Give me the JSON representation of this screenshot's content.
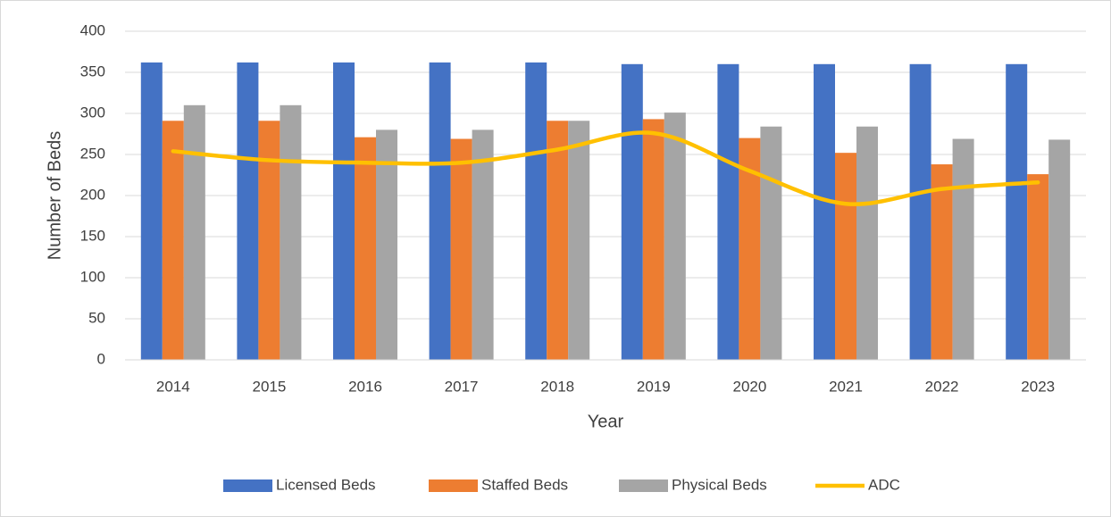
{
  "chart_data": {
    "type": "bar",
    "x_label": "Year",
    "y_label": "Number of Beds",
    "categories": [
      "2014",
      "2015",
      "2016",
      "2017",
      "2018",
      "2019",
      "2020",
      "2021",
      "2022",
      "2023"
    ],
    "series": [
      {
        "name": "Licensed Beds",
        "color": "#4472c4",
        "type": "bar",
        "values": [
          362,
          362,
          362,
          362,
          362,
          360,
          360,
          360,
          360,
          360
        ]
      },
      {
        "name": "Staffed Beds",
        "color": "#ed7d31",
        "type": "bar",
        "values": [
          291,
          291,
          271,
          269,
          291,
          293,
          270,
          252,
          238,
          226
        ]
      },
      {
        "name": "Physical Beds",
        "color": "#a5a5a5",
        "type": "bar",
        "values": [
          310,
          310,
          280,
          280,
          291,
          301,
          284,
          284,
          269,
          268
        ]
      },
      {
        "name": "ADC",
        "color": "#ffc000",
        "type": "line",
        "values": [
          254,
          243,
          240,
          240,
          256,
          276,
          230,
          190,
          208,
          216
        ]
      }
    ],
    "ylim": [
      0,
      400
    ],
    "yticks": [
      0,
      50,
      100,
      150,
      200,
      250,
      300,
      350,
      400
    ],
    "grid": true,
    "legend": "bottom"
  }
}
